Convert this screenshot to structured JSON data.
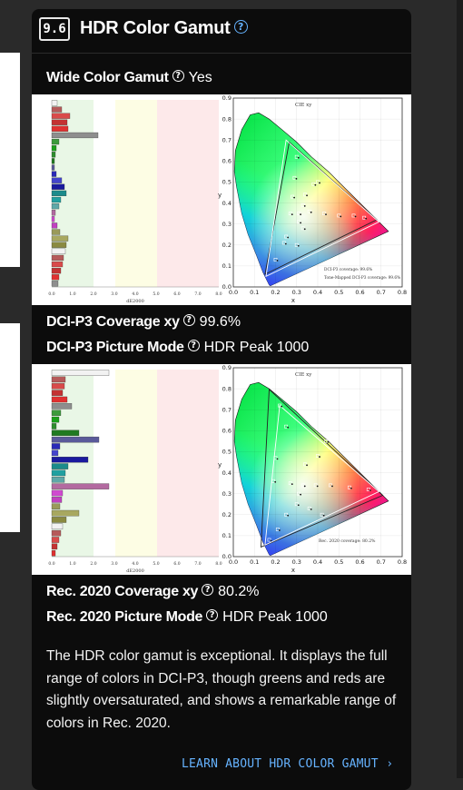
{
  "section": {
    "number": "9.6",
    "title": "HDR Color Gamut",
    "title_help_icon": "help-circle-icon"
  },
  "wide_color_gamut": {
    "label": "Wide Color Gamut",
    "value": "Yes"
  },
  "dci_p3": {
    "coverage_label": "DCI-P3 Coverage xy",
    "coverage_value": "99.6%",
    "mode_label": "DCI-P3 Picture Mode",
    "mode_value": "HDR Peak 1000"
  },
  "rec2020": {
    "coverage_label": "Rec. 2020 Coverage xy",
    "coverage_value": "80.2%",
    "mode_label": "Rec. 2020 Picture Mode",
    "mode_value": "HDR Peak 1000"
  },
  "chart1": {
    "delta_axis_label": "dE2000",
    "delta_ticks": [
      "0.0",
      "1.0",
      "2.0",
      "3.0",
      "4.0",
      "5.0",
      "6.0",
      "7.0",
      "8.0"
    ],
    "cie_title": "CIE xy",
    "x_ticks": [
      "0.0",
      "0.1",
      "0.2",
      "0.3",
      "0.4",
      "0.5",
      "0.6",
      "0.7",
      "0.8"
    ],
    "y_ticks": [
      "0.0",
      "0.1",
      "0.2",
      "0.3",
      "0.4",
      "0.5",
      "0.6",
      "0.7",
      "0.8",
      "0.9"
    ],
    "x_label": "x",
    "y_label": "y",
    "legend_line1": "DCI-P3 coverage: 99.6%",
    "legend_line2": "Tone-Mapped DCI-P3 coverage: 99.6%"
  },
  "chart2": {
    "delta_axis_label": "dE2000",
    "delta_ticks": [
      "0.0",
      "1.0",
      "2.0",
      "3.0",
      "4.0",
      "5.0",
      "6.0",
      "7.0",
      "8.0"
    ],
    "cie_title": "CIE xy",
    "x_ticks": [
      "0.0",
      "0.1",
      "0.2",
      "0.3",
      "0.4",
      "0.5",
      "0.6",
      "0.7",
      "0.8"
    ],
    "y_ticks": [
      "0.0",
      "0.1",
      "0.2",
      "0.3",
      "0.4",
      "0.5",
      "0.6",
      "0.7",
      "0.8",
      "0.9"
    ],
    "x_label": "x",
    "y_label": "y",
    "legend_line1": "Rec. 2020 coverage: 80.2%"
  },
  "description": "The HDR color gamut is exceptional. It displays the full range of colors in DCI-P3, though greens and reds are slightly oversaturated, and shows a remarkable range of colors in Rec. 2020.",
  "learn_more": {
    "label": "LEARN ABOUT HDR COLOR GAMUT",
    "icon": "chevron-right-icon"
  },
  "colors": {
    "accent": "#66b3ff",
    "card_bg": "#0c0c0c",
    "page_bg": "#2a2a2a"
  }
}
